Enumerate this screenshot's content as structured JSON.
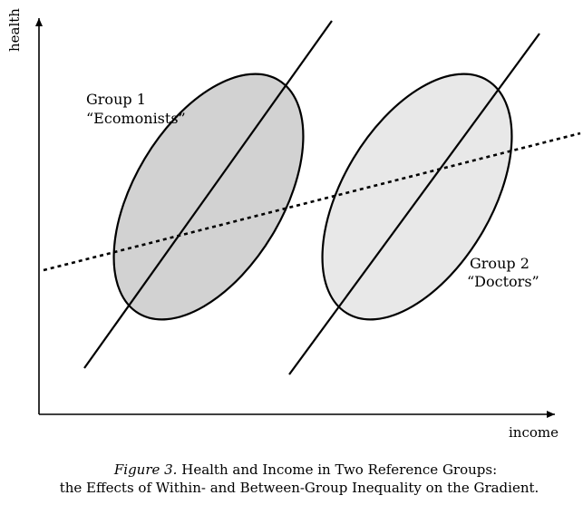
{
  "figure": {
    "axis_labels": {
      "y": "health",
      "x": "income"
    },
    "groups": [
      {
        "line1": "Group 1",
        "line2": "“Ecomonists”",
        "fill": "#d2d2d2"
      },
      {
        "line1": "Group 2",
        "line2": "“Doctors”",
        "fill": "#e8e8e8"
      }
    ],
    "caption": {
      "figure_number": "Figure 3.",
      "line1_rest": " Health and Income in Two Reference Groups:",
      "line2": "the Effects of Within- and Between-Group Inequality on the Gradient."
    }
  }
}
